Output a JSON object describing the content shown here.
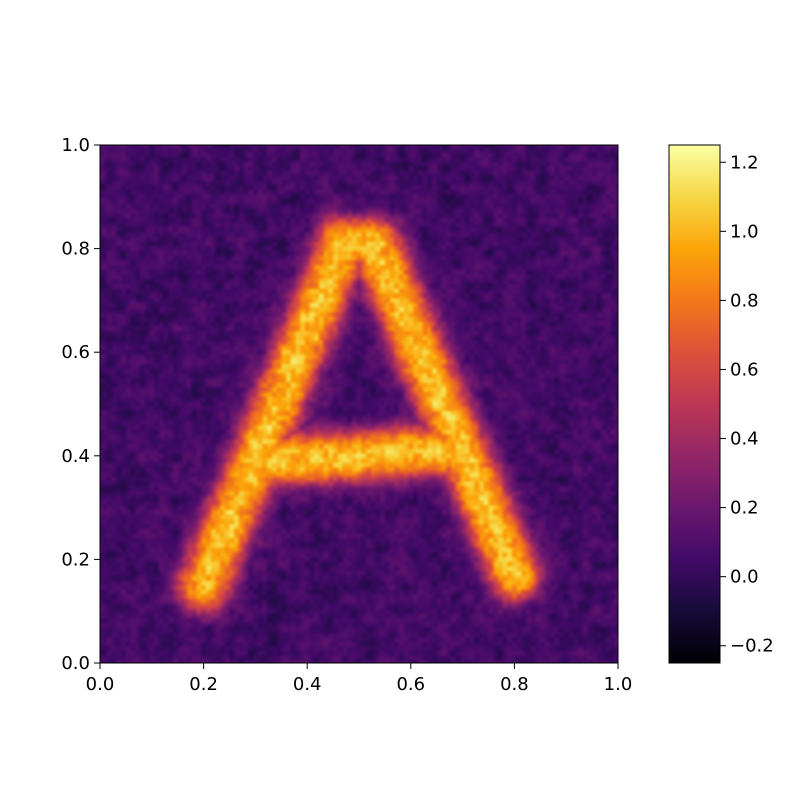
{
  "chart_data": {
    "type": "heatmap",
    "title": "",
    "xlabel": "",
    "ylabel": "",
    "xlim": [
      0.0,
      1.0
    ],
    "ylim": [
      0.0,
      1.0
    ],
    "colormap": "inferno",
    "color_range": [
      -0.25,
      1.25
    ],
    "background_value": 0.05,
    "noise_amplitude": 0.1,
    "signal_value": 1.05,
    "shape": {
      "description_letter": "A",
      "strokes": [
        {
          "from": [
            0.2,
            0.15
          ],
          "to": [
            0.47,
            0.81
          ]
        },
        {
          "from": [
            0.53,
            0.81
          ],
          "to": [
            0.8,
            0.17
          ]
        },
        {
          "from": [
            0.47,
            0.81
          ],
          "to": [
            0.53,
            0.81
          ]
        },
        {
          "from": [
            0.33,
            0.39
          ],
          "to": [
            0.67,
            0.41
          ]
        }
      ],
      "stroke_halfwidth": 0.045
    },
    "x_ticks": [
      "0.0",
      "0.2",
      "0.4",
      "0.6",
      "0.8",
      "1.0"
    ],
    "x_tick_values": [
      0.0,
      0.2,
      0.4,
      0.6,
      0.8,
      1.0
    ],
    "y_ticks": [
      "0.0",
      "0.2",
      "0.4",
      "0.6",
      "0.8",
      "1.0"
    ],
    "y_tick_values": [
      0.0,
      0.2,
      0.4,
      0.6,
      0.8,
      1.0
    ],
    "colorbar": {
      "ticks": [
        "−0.2",
        "0.0",
        "0.2",
        "0.4",
        "0.6",
        "0.8",
        "1.0",
        "1.2"
      ],
      "tick_values": [
        -0.2,
        0.0,
        0.2,
        0.4,
        0.6,
        0.8,
        1.0,
        1.2
      ]
    }
  }
}
